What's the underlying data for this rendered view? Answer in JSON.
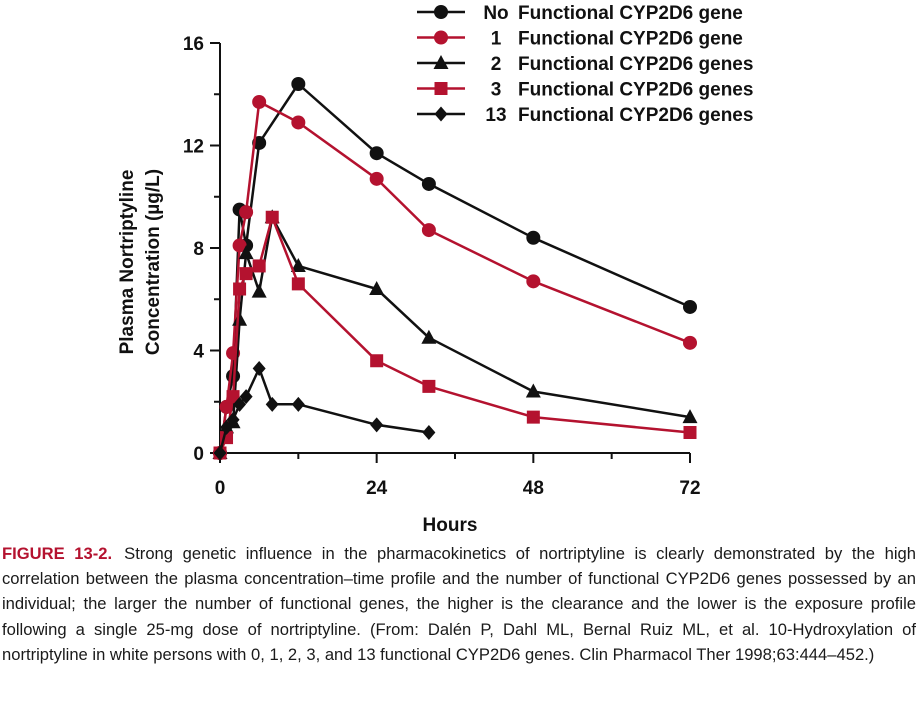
{
  "chart_data": {
    "type": "line",
    "xlabel": "Hours",
    "ylabel": [
      "Plasma Nortriptyline",
      "Concentration (µg/L)"
    ],
    "xlim": [
      0,
      72
    ],
    "ylim": [
      0,
      16
    ],
    "xticks": [
      0,
      24,
      48,
      72
    ],
    "yticks": [
      0,
      4,
      8,
      12,
      16
    ],
    "grid": false,
    "legend_position": "top-right",
    "series": [
      {
        "name": "No  Functional CYP2D6 gene",
        "legend_num": "No",
        "legend_text": "Functional CYP2D6 gene",
        "color": "#111111",
        "marker": "circle",
        "x": [
          0,
          1,
          2,
          3,
          4,
          6,
          12,
          24,
          32,
          48,
          72
        ],
        "y": [
          0,
          1.8,
          3.0,
          9.5,
          8.1,
          12.1,
          14.4,
          11.7,
          10.5,
          8.4,
          5.7
        ]
      },
      {
        "name": "1   Functional CYP2D6 gene",
        "legend_num": "1",
        "legend_text": "Functional CYP2D6 gene",
        "color": "#b4122f",
        "marker": "circle",
        "x": [
          0,
          1,
          2,
          3,
          4,
          6,
          12,
          24,
          32,
          48,
          72
        ],
        "y": [
          0,
          1.8,
          3.9,
          8.1,
          9.4,
          13.7,
          12.9,
          10.7,
          8.7,
          6.7,
          4.3
        ]
      },
      {
        "name": "2   Functional CYP2D6 genes",
        "legend_num": "2",
        "legend_text": "Functional CYP2D6 genes",
        "color": "#111111",
        "marker": "triangle",
        "x": [
          0,
          1,
          2,
          3,
          4,
          6,
          8,
          12,
          24,
          32,
          48,
          72
        ],
        "y": [
          0,
          1.0,
          1.2,
          5.2,
          7.8,
          6.3,
          9.2,
          7.3,
          6.4,
          4.5,
          2.4,
          1.4
        ]
      },
      {
        "name": "3   Functional CYP2D6 genes",
        "legend_num": "3",
        "legend_text": "Functional CYP2D6 genes",
        "color": "#b4122f",
        "marker": "square",
        "x": [
          0,
          1,
          2,
          3,
          4,
          6,
          8,
          12,
          24,
          32,
          48,
          72
        ],
        "y": [
          0,
          0.6,
          2.2,
          6.4,
          7.0,
          7.3,
          9.2,
          6.6,
          3.6,
          2.6,
          1.4,
          0.8
        ]
      },
      {
        "name": "13   Functional CYP2D6 genes",
        "legend_num": "13",
        "legend_text": "Functional CYP2D6 genes",
        "color": "#111111",
        "marker": "diamond",
        "x": [
          0,
          1,
          2,
          3,
          4,
          6,
          8,
          12,
          24,
          32
        ],
        "y": [
          0,
          1.0,
          1.3,
          1.9,
          2.2,
          3.3,
          1.9,
          1.9,
          1.1,
          0.8
        ]
      }
    ]
  },
  "caption": {
    "label": "FIGURE 13-2.",
    "text": "Strong genetic influence in the pharmacokinetics of nortriptyline is clearly demonstrated by the high correlation between the plasma concentration–time profile and the number of functional CYP2D6 genes possessed by an individual; the larger the number of functional genes, the higher is the clearance and the lower is the exposure profile following a single 25-mg dose of nortriptyline. (From: Dalén P, Dahl ML, Bernal Ruiz ML, et al. 10-Hydroxylation of nortriptyline in white persons with 0, 1, 2, 3, and 13 functional CYP2D6 genes. Clin Pharmacol Ther 1998;63:444–452.)"
  }
}
